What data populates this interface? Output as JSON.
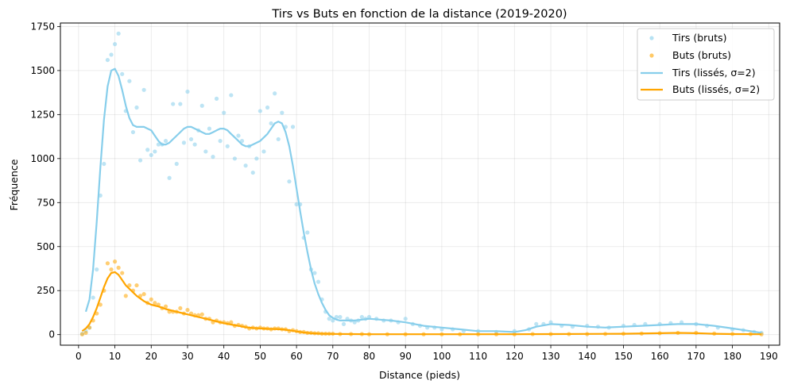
{
  "chart_data": {
    "type": "scatter",
    "title": "Tirs vs Buts en fonction de la distance (2019-2020)",
    "xlabel": "Distance (pieds)",
    "ylabel": "Fréquence",
    "xlim": [
      -5,
      193
    ],
    "ylim": [
      -60,
      1770
    ],
    "xticks": [
      0,
      10,
      20,
      30,
      40,
      50,
      60,
      70,
      80,
      90,
      100,
      110,
      120,
      130,
      140,
      150,
      160,
      170,
      180,
      190
    ],
    "yticks": [
      0,
      250,
      500,
      750,
      1000,
      1250,
      1500,
      1750
    ],
    "grid": true,
    "legend_position": "top-right",
    "colors": {
      "tirs": "#87ceeb",
      "buts": "#ffa500"
    },
    "legend": [
      "Tirs (bruts)",
      "Buts (bruts)",
      "Tirs (lissés, σ=2)",
      "Buts (lissés, σ=2)"
    ],
    "series": [
      {
        "name": "Tirs (bruts)",
        "kind": "scatter",
        "x": [
          1,
          2,
          3,
          4,
          5,
          6,
          7,
          8,
          9,
          10,
          11,
          12,
          13,
          14,
          15,
          16,
          17,
          18,
          19,
          20,
          21,
          22,
          23,
          24,
          25,
          26,
          27,
          28,
          29,
          30,
          31,
          32,
          33,
          34,
          35,
          36,
          37,
          38,
          39,
          40,
          41,
          42,
          43,
          44,
          45,
          46,
          47,
          48,
          49,
          50,
          51,
          52,
          53,
          54,
          55,
          56,
          57,
          58,
          59,
          60,
          61,
          62,
          63,
          64,
          65,
          66,
          67,
          68,
          69,
          70,
          71,
          72,
          73,
          74,
          75,
          76,
          77,
          78,
          79,
          80,
          82,
          84,
          86,
          88,
          90,
          92,
          94,
          96,
          98,
          100,
          103,
          106,
          110,
          115,
          120,
          124,
          126,
          128,
          130,
          133,
          136,
          140,
          143,
          146,
          150,
          153,
          156,
          160,
          163,
          166,
          170,
          173,
          176,
          180,
          183,
          186,
          188
        ],
        "y": [
          5,
          20,
          40,
          210,
          370,
          790,
          970,
          1560,
          1590,
          1650,
          1710,
          1480,
          1270,
          1440,
          1150,
          1290,
          990,
          1390,
          1050,
          1020,
          1040,
          1080,
          1080,
          1100,
          890,
          1310,
          970,
          1310,
          1090,
          1380,
          1110,
          1080,
          1160,
          1300,
          1040,
          1170,
          1010,
          1340,
          1100,
          1260,
          1070,
          1360,
          1000,
          1130,
          1100,
          960,
          1070,
          920,
          1000,
          1270,
          1040,
          1290,
          1200,
          1370,
          1110,
          1260,
          1180,
          870,
          1180,
          740,
          740,
          550,
          580,
          370,
          350,
          300,
          200,
          130,
          90,
          80,
          100,
          100,
          60,
          90,
          80,
          70,
          80,
          100,
          90,
          100,
          90,
          80,
          80,
          70,
          90,
          60,
          50,
          40,
          40,
          30,
          30,
          20,
          20,
          15,
          20,
          30,
          60,
          60,
          70,
          50,
          45,
          50,
          45,
          40,
          50,
          55,
          60,
          60,
          65,
          70,
          60,
          50,
          40,
          30,
          25,
          15,
          10
        ]
      },
      {
        "name": "Buts (bruts)",
        "kind": "scatter",
        "x": [
          1,
          2,
          3,
          4,
          5,
          6,
          7,
          8,
          9,
          10,
          11,
          12,
          13,
          14,
          15,
          16,
          17,
          18,
          19,
          20,
          21,
          22,
          23,
          24,
          25,
          26,
          27,
          28,
          29,
          30,
          31,
          32,
          33,
          34,
          35,
          36,
          37,
          38,
          39,
          40,
          41,
          42,
          43,
          44,
          45,
          46,
          47,
          48,
          49,
          50,
          51,
          52,
          53,
          54,
          55,
          56,
          57,
          58,
          59,
          60,
          61,
          62,
          63,
          64,
          65,
          66,
          67,
          68,
          69,
          70,
          72,
          75,
          78,
          80,
          85,
          90,
          95,
          100,
          105,
          110,
          115,
          120,
          125,
          130,
          135,
          140,
          145,
          150,
          155,
          160,
          165,
          170,
          175,
          180,
          185,
          188
        ],
        "y": [
          2,
          10,
          40,
          80,
          120,
          170,
          250,
          405,
          370,
          415,
          380,
          350,
          220,
          280,
          250,
          280,
          220,
          230,
          180,
          200,
          180,
          170,
          150,
          160,
          130,
          130,
          130,
          150,
          120,
          140,
          120,
          110,
          110,
          115,
          90,
          90,
          70,
          80,
          70,
          70,
          65,
          70,
          50,
          55,
          50,
          45,
          35,
          40,
          35,
          40,
          35,
          35,
          30,
          35,
          35,
          30,
          30,
          20,
          25,
          20,
          15,
          15,
          10,
          10,
          8,
          8,
          5,
          5,
          5,
          5,
          3,
          3,
          3,
          2,
          2,
          2,
          2,
          2,
          2,
          2,
          2,
          2,
          3,
          3,
          3,
          3,
          4,
          5,
          6,
          8,
          10,
          10,
          6,
          4,
          3,
          2
        ]
      },
      {
        "name": "Tirs (lissés, σ=2)",
        "kind": "line",
        "x": [
          2,
          3,
          4,
          5,
          6,
          7,
          8,
          9,
          10,
          11,
          12,
          13,
          14,
          15,
          16,
          17,
          18,
          19,
          20,
          21,
          22,
          23,
          24,
          25,
          26,
          27,
          28,
          29,
          30,
          31,
          32,
          33,
          34,
          35,
          36,
          37,
          38,
          39,
          40,
          41,
          42,
          43,
          44,
          45,
          46,
          47,
          48,
          49,
          50,
          51,
          52,
          53,
          54,
          55,
          56,
          57,
          58,
          59,
          60,
          61,
          62,
          63,
          64,
          65,
          66,
          67,
          68,
          69,
          70,
          71,
          72,
          74,
          76,
          78,
          80,
          83,
          86,
          90,
          95,
          100,
          105,
          110,
          115,
          120,
          123,
          126,
          130,
          135,
          140,
          145,
          150,
          155,
          160,
          165,
          170,
          175,
          180,
          185,
          188
        ],
        "y": [
          130,
          200,
          370,
          640,
          950,
          1220,
          1410,
          1500,
          1510,
          1470,
          1390,
          1300,
          1230,
          1190,
          1180,
          1180,
          1180,
          1170,
          1160,
          1130,
          1100,
          1080,
          1080,
          1090,
          1110,
          1130,
          1150,
          1170,
          1180,
          1180,
          1170,
          1160,
          1150,
          1140,
          1140,
          1150,
          1160,
          1170,
          1170,
          1160,
          1140,
          1120,
          1100,
          1080,
          1070,
          1070,
          1080,
          1090,
          1100,
          1120,
          1140,
          1170,
          1200,
          1210,
          1200,
          1150,
          1070,
          960,
          830,
          700,
          580,
          470,
          370,
          290,
          230,
          180,
          140,
          110,
          95,
          85,
          80,
          80,
          80,
          85,
          90,
          85,
          80,
          70,
          50,
          40,
          30,
          20,
          20,
          15,
          25,
          45,
          60,
          55,
          45,
          40,
          45,
          50,
          55,
          60,
          60,
          50,
          35,
          20,
          10
        ]
      },
      {
        "name": "Buts (lissés, σ=2)",
        "kind": "line",
        "x": [
          1,
          2,
          3,
          4,
          5,
          6,
          7,
          8,
          9,
          10,
          11,
          12,
          13,
          14,
          15,
          16,
          17,
          18,
          19,
          20,
          22,
          24,
          26,
          28,
          30,
          32,
          34,
          36,
          38,
          40,
          42,
          44,
          46,
          48,
          50,
          52,
          54,
          56,
          58,
          60,
          62,
          64,
          66,
          68,
          70,
          75,
          80,
          90,
          100,
          110,
          120,
          130,
          140,
          150,
          160,
          165,
          170,
          175,
          180,
          188
        ],
        "y": [
          20,
          35,
          60,
          100,
          150,
          210,
          270,
          320,
          350,
          355,
          340,
          310,
          280,
          260,
          240,
          220,
          205,
          190,
          180,
          170,
          160,
          145,
          135,
          125,
          115,
          105,
          95,
          85,
          75,
          65,
          57,
          50,
          42,
          38,
          35,
          33,
          32,
          30,
          25,
          18,
          12,
          8,
          6,
          5,
          4,
          3,
          2,
          2,
          2,
          2,
          2,
          3,
          4,
          5,
          8,
          10,
          8,
          5,
          3,
          2
        ]
      }
    ]
  }
}
